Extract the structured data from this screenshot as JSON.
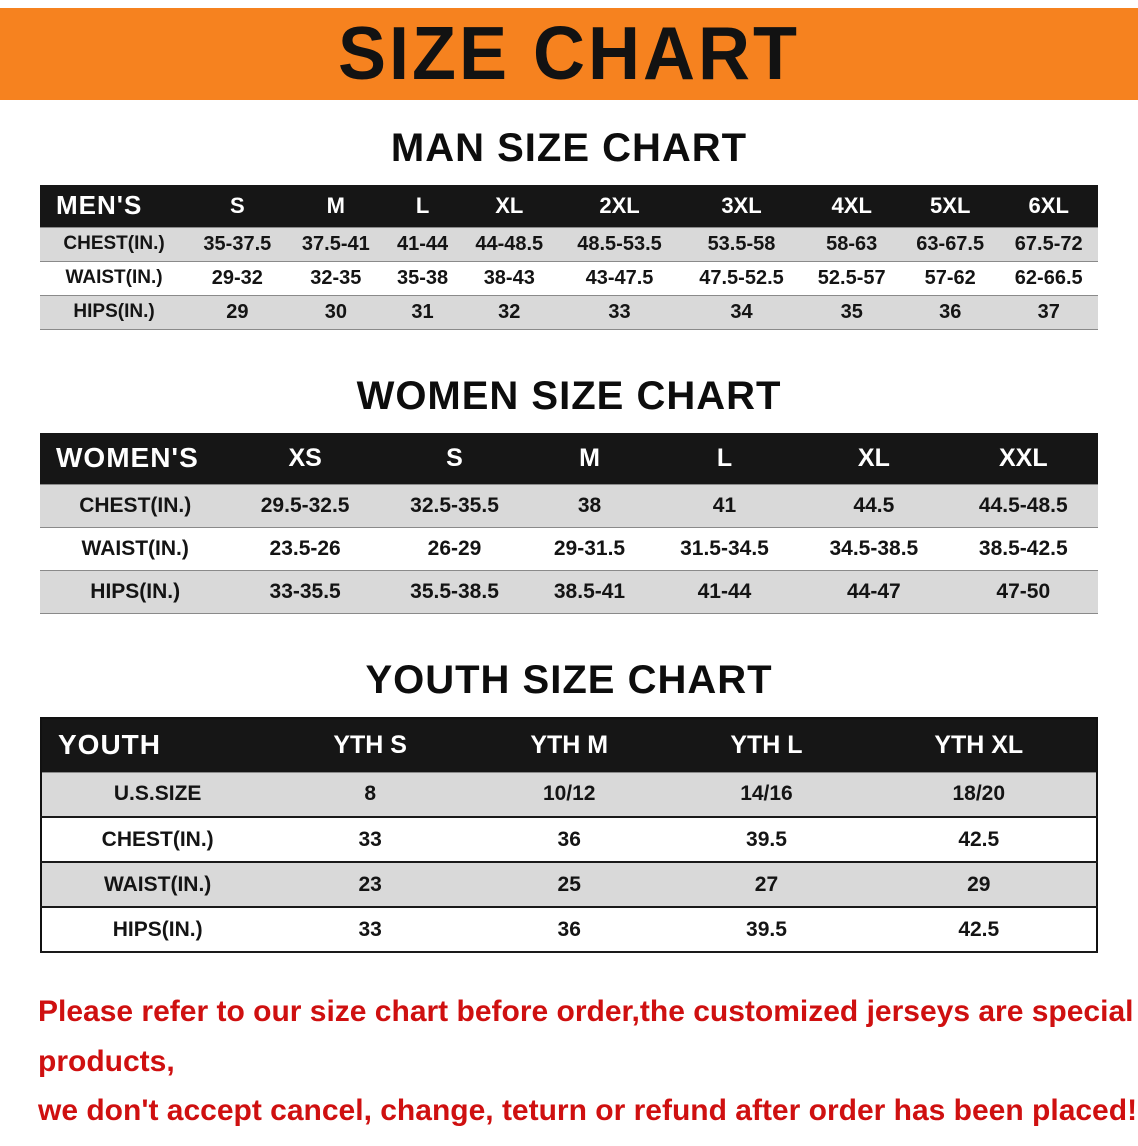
{
  "banner": {
    "title": "SIZE CHART"
  },
  "colors": {
    "banner-bg": "#f6821f",
    "header-bg": "#161616",
    "stripe": "#d9d9d9",
    "note-color": "#cf1010"
  },
  "sections": [
    {
      "heading": "MAN SIZE CHART",
      "table": {
        "header": [
          "MEN'S",
          "S",
          "M",
          "L",
          "XL",
          "2XL",
          "3XL",
          "4XL",
          "5XL",
          "6XL"
        ],
        "rows": [
          [
            "CHEST(IN.)",
            "35-37.5",
            "37.5-41",
            "41-44",
            "44-48.5",
            "48.5-53.5",
            "53.5-58",
            "58-63",
            "63-67.5",
            "67.5-72"
          ],
          [
            "WAIST(IN.)",
            "29-32",
            "32-35",
            "35-38",
            "38-43",
            "43-47.5",
            "47.5-52.5",
            "52.5-57",
            "57-62",
            "62-66.5"
          ],
          [
            "HIPS(IN.)",
            "29",
            "30",
            "31",
            "32",
            "33",
            "34",
            "35",
            "36",
            "37"
          ]
        ]
      }
    },
    {
      "heading": "WOMEN SIZE CHART",
      "table": {
        "header": [
          "WOMEN'S",
          "XS",
          "S",
          "M",
          "L",
          "XL",
          "XXL"
        ],
        "rows": [
          [
            "CHEST(IN.)",
            "29.5-32.5",
            "32.5-35.5",
            "38",
            "41",
            "44.5",
            "44.5-48.5"
          ],
          [
            "WAIST(IN.)",
            "23.5-26",
            "26-29",
            "29-31.5",
            "31.5-34.5",
            "34.5-38.5",
            "38.5-42.5"
          ],
          [
            "HIPS(IN.)",
            "33-35.5",
            "35.5-38.5",
            "38.5-41",
            "41-44",
            "44-47",
            "47-50"
          ]
        ]
      }
    },
    {
      "heading": "YOUTH SIZE CHART",
      "table": {
        "header": [
          "YOUTH",
          "YTH S",
          "YTH M",
          "YTH L",
          "YTH XL"
        ],
        "rows": [
          [
            "U.S.SIZE",
            "8",
            "10/12",
            "14/16",
            "18/20"
          ],
          [
            "CHEST(IN.)",
            "33",
            "36",
            "39.5",
            "42.5"
          ],
          [
            "WAIST(IN.)",
            "23",
            "25",
            "27",
            "29"
          ],
          [
            "HIPS(IN.)",
            "33",
            "36",
            "39.5",
            "42.5"
          ]
        ]
      }
    }
  ],
  "footer": {
    "line1": "Please refer to our size chart before order,the customized jerseys are special products,",
    "line2": "we don't accept cancel, change, teturn or refund after order has been placed!"
  }
}
